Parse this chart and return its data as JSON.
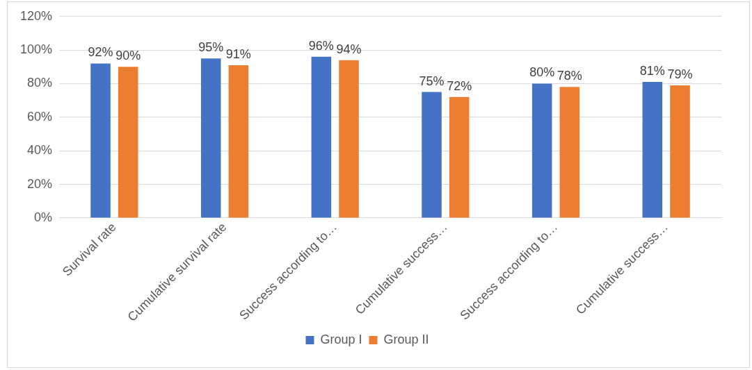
{
  "chart_data": {
    "type": "bar",
    "categories": [
      "Survival rate",
      "Cumulative survival rate",
      "Success according to…",
      "Cumulative success…",
      "Success according to…",
      "Cumulative success…"
    ],
    "series": [
      {
        "name": "Group I",
        "color": "#4472c4",
        "values": [
          92,
          95,
          96,
          75,
          80,
          81
        ],
        "value_labels": [
          "92%",
          "95%",
          "96%",
          "75%",
          "80%",
          "81%"
        ]
      },
      {
        "name": "Group II",
        "color": "#ed7d31",
        "values": [
          90,
          91,
          94,
          72,
          78,
          79
        ],
        "value_labels": [
          "90%",
          "91%",
          "94%",
          "72%",
          "78%",
          "79%"
        ]
      }
    ],
    "ylim": [
      0,
      120
    ],
    "yticks": [
      {
        "value": 0,
        "label": "0%"
      },
      {
        "value": 20,
        "label": "20%"
      },
      {
        "value": 40,
        "label": "40%"
      },
      {
        "value": 60,
        "label": "60%"
      },
      {
        "value": 80,
        "label": "80%"
      },
      {
        "value": 100,
        "label": "100%"
      },
      {
        "value": 120,
        "label": "120%"
      }
    ],
    "grid": "y",
    "legend": "bottom"
  }
}
